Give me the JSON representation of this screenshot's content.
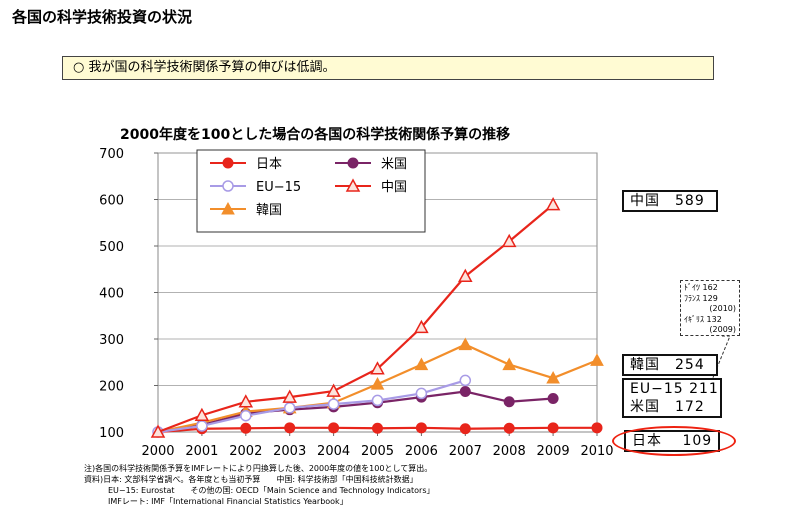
{
  "page": {
    "title": "各国の科学技術投資の状況",
    "summary": "○ 我が国の科学技術関係予算の伸びは低調。"
  },
  "chart_data": {
    "type": "line",
    "title": "2000年度を100とした場合の各国の科学技術関係予算の推移",
    "xlabel": "",
    "ylabel": "",
    "x": [
      2000,
      2001,
      2002,
      2003,
      2004,
      2005,
      2006,
      2007,
      2008,
      2009,
      2010
    ],
    "xlim": [
      2000,
      2010
    ],
    "ylim": [
      100,
      700
    ],
    "yticks": [
      100,
      200,
      300,
      400,
      500,
      600,
      700
    ],
    "grid": true,
    "legend_position": "top-left inside plot",
    "series": [
      {
        "name": "日本",
        "color": "#e8251b",
        "marker": "circle",
        "values": [
          100,
          107,
          108,
          109,
          109,
          108,
          109,
          107,
          108,
          109,
          109
        ]
      },
      {
        "name": "米国",
        "color": "#7a2466",
        "marker": "circle",
        "values": [
          100,
          115,
          140,
          148,
          154,
          163,
          175,
          187,
          165,
          172,
          null
        ]
      },
      {
        "name": "EU−15",
        "color": "#a89be6",
        "marker": "open-circle",
        "values": [
          100,
          113,
          135,
          152,
          160,
          168,
          183,
          211,
          null,
          null,
          null
        ]
      },
      {
        "name": "中国",
        "color": "#e8251b",
        "marker": "open-triangle",
        "values": [
          100,
          136,
          165,
          175,
          188,
          236,
          325,
          435,
          510,
          589,
          null
        ]
      },
      {
        "name": "韓国",
        "color": "#f28e2b",
        "marker": "triangle",
        "values": [
          100,
          120,
          144,
          152,
          163,
          203,
          245,
          288,
          245,
          216,
          254
        ]
      }
    ]
  },
  "callouts": {
    "china": "中国　589",
    "korea": "韓国　254",
    "eu_us_line1": "EU−15 211",
    "eu_us_line2": "米国　172",
    "japan": "日本　 109"
  },
  "note": {
    "line1": "ﾄﾞｲﾂ 162",
    "line2": "ﾌﾗﾝｽ 129",
    "line3": "(2010)",
    "line4": "ｲｷﾞﾘｽ 132",
    "line5": "(2009)"
  },
  "footnotes": [
    "注)各国の科学技術関係予算をIMFレートにより円換算した後、2000年度の値を100として算出。",
    "資料)日本: 文部科学省調べ。各年度とも当初予算　　中国: 科学技術部「中国科技統計数据」",
    "　　　EU−15: Eurostat　　その他の国: OECD「Main Science and Technology Indicators」",
    "　　　IMFレート: IMF「International Financial Statistics Yearbook」"
  ]
}
